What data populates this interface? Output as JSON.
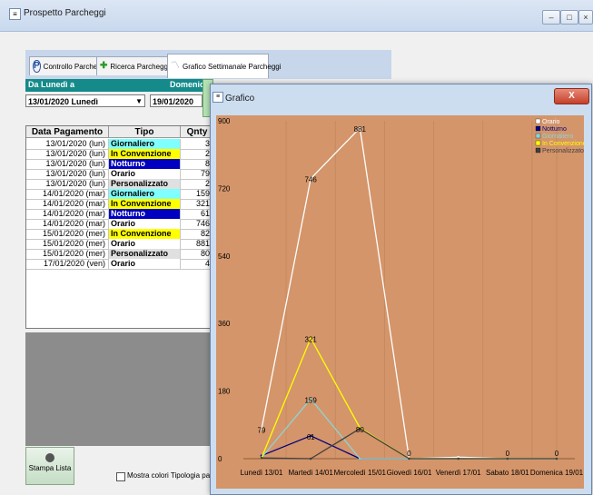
{
  "window": {
    "title": "Prospetto Parcheggi"
  },
  "tabs": [
    {
      "label": "Controllo Parcheggi"
    },
    {
      "label": "Ricerca Parcheggi"
    },
    {
      "label": "Grafico Settimanale Parcheggi"
    }
  ],
  "filters": {
    "from_label": "Da Lunedì a",
    "to_label": "Domenica",
    "from_date": "13/01/2020  Lunedì",
    "to_date": "19/01/2020"
  },
  "grid": {
    "headers": [
      "Data Pagamento",
      "Tipo PArcheggio",
      "Qnty"
    ],
    "rows": [
      {
        "date": "13/01/2020 (lun)",
        "tipo": "Giornaliero",
        "qty": "3",
        "color": "#7fffff"
      },
      {
        "date": "13/01/2020 (lun)",
        "tipo": "In Convenzione",
        "qty": "2",
        "color": "#ffff00"
      },
      {
        "date": "13/01/2020 (lun)",
        "tipo": "Notturno",
        "qty": "8",
        "color": "#0000c0"
      },
      {
        "date": "13/01/2020 (lun)",
        "tipo": "Orario",
        "qty": "79",
        "color": "#ffffff"
      },
      {
        "date": "13/01/2020 (lun)",
        "tipo": "Personalizzato",
        "qty": "2",
        "color": "#e0e0e0"
      },
      {
        "date": "14/01/2020 (mar)",
        "tipo": "Giornaliero",
        "qty": "159",
        "color": "#7fffff"
      },
      {
        "date": "14/01/2020 (mar)",
        "tipo": "In Convenzione",
        "qty": "321",
        "color": "#ffff00"
      },
      {
        "date": "14/01/2020 (mar)",
        "tipo": "Notturno",
        "qty": "61",
        "color": "#0000c0"
      },
      {
        "date": "14/01/2020 (mar)",
        "tipo": "Orario",
        "qty": "746",
        "color": "#ffffff"
      },
      {
        "date": "15/01/2020 (mer)",
        "tipo": "In Convenzione",
        "qty": "82",
        "color": "#ffff00"
      },
      {
        "date": "15/01/2020 (mer)",
        "tipo": "Orario",
        "qty": "881",
        "color": "#ffffff"
      },
      {
        "date": "15/01/2020 (mer)",
        "tipo": "Personalizzato",
        "qty": "80",
        "color": "#e0e0e0"
      },
      {
        "date": "17/01/2020 (ven)",
        "tipo": "Orario",
        "qty": "4",
        "color": "#ffffff"
      }
    ]
  },
  "buttons": {
    "stampa": "Stampa Lista"
  },
  "checkbox": {
    "label": "Mostra colori Tipologia parcheggi"
  },
  "chart_window": {
    "title": "Grafico",
    "close": "X"
  },
  "chart_data": {
    "type": "line",
    "background": "#d4956a",
    "categories": [
      "Lunedì 13/01",
      "Martedì 14/01",
      "Mercoledì 15/01",
      "Giovedì 16/01",
      "Venerdì 17/01",
      "Sabato 18/01",
      "Domenica 19/01"
    ],
    "ylim": [
      0,
      900
    ],
    "yticks": [
      "0",
      "180",
      "360",
      "540",
      "720",
      "900"
    ],
    "legend_position": "top-right",
    "series": [
      {
        "name": "Orario",
        "color": "#ffffff",
        "values": [
          79,
          746,
          881,
          0,
          4,
          0,
          0
        ]
      },
      {
        "name": "Notturno",
        "color": "#000080",
        "values": [
          8,
          61,
          0,
          0,
          0,
          0,
          0
        ]
      },
      {
        "name": "Giornaliero",
        "color": "#8fd3d3",
        "values": [
          3,
          159,
          0,
          0,
          0,
          0,
          0
        ]
      },
      {
        "name": "In Convenzione",
        "color": "#ffff00",
        "values": [
          2,
          321,
          82,
          0,
          0,
          0,
          0
        ]
      },
      {
        "name": "Personalizzato",
        "color": "#404040",
        "values": [
          2,
          0,
          80,
          0,
          0,
          0,
          0
        ]
      }
    ],
    "labels": [
      {
        "text": "79",
        "series": 0,
        "index": 0
      },
      {
        "text": "746",
        "series": 0,
        "index": 1
      },
      {
        "text": "881",
        "series": 0,
        "index": 2
      },
      {
        "text": "321",
        "series": 3,
        "index": 1
      },
      {
        "text": "159",
        "series": 2,
        "index": 1
      },
      {
        "text": "61",
        "series": 1,
        "index": 1
      },
      {
        "text": "80",
        "series": 4,
        "index": 2
      },
      {
        "text": "0",
        "series": 0,
        "index": 3
      },
      {
        "text": "0",
        "series": 0,
        "index": 5
      },
      {
        "text": "0",
        "series": 0,
        "index": 6
      }
    ]
  }
}
